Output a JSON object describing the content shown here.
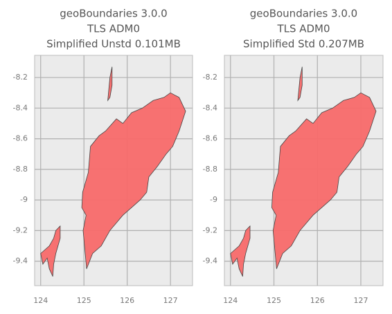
{
  "chart_data": [
    {
      "type": "map",
      "title": [
        "geoBoundaries 3.0.0",
        "TLS ADM0",
        "Simplified Unstd 0.101MB"
      ],
      "xlim": [
        123.86,
        127.51
      ],
      "ylim": [
        -9.56,
        -8.055
      ],
      "xticks": [
        124,
        125,
        126,
        127
      ],
      "yticks": [
        -8.2,
        -8.4,
        -8.6,
        -8.8,
        -9.0,
        -9.2,
        -9.4
      ],
      "grid": true,
      "color": "#f86a6a",
      "shapes": [
        {
          "x": [
            125.06,
            124.98,
            125.05,
            124.95,
            124.97,
            125.1,
            125.15,
            125.35,
            125.5,
            125.75,
            125.9,
            126.1,
            126.35,
            126.6,
            126.85,
            127.0,
            127.2,
            127.35,
            127.2,
            127.05,
            126.9,
            126.7,
            126.5,
            126.45,
            126.3,
            126.1,
            125.9,
            125.6,
            125.4,
            125.2,
            125.06
          ],
          "y": [
            -9.45,
            -9.2,
            -9.1,
            -9.05,
            -8.95,
            -8.82,
            -8.65,
            -8.58,
            -8.55,
            -8.47,
            -8.5,
            -8.43,
            -8.4,
            -8.35,
            -8.33,
            -8.3,
            -8.33,
            -8.42,
            -8.55,
            -8.65,
            -8.7,
            -8.78,
            -8.85,
            -8.95,
            -9.0,
            -9.05,
            -9.1,
            -9.2,
            -9.3,
            -9.35,
            -9.45
          ]
        },
        {
          "x": [
            124.0,
            124.2,
            124.3,
            124.35,
            124.45,
            124.45,
            124.35,
            124.3,
            124.28,
            124.2,
            124.15,
            124.05,
            124.0
          ],
          "y": [
            -9.35,
            -9.3,
            -9.25,
            -9.2,
            -9.17,
            -9.25,
            -9.35,
            -9.42,
            -9.5,
            -9.45,
            -9.38,
            -9.42,
            -9.35
          ]
        },
        {
          "x": [
            125.55,
            125.6,
            125.65,
            125.65,
            125.6,
            125.55
          ],
          "y": [
            -8.35,
            -8.2,
            -8.13,
            -8.25,
            -8.33,
            -8.35
          ]
        }
      ]
    },
    {
      "type": "map",
      "title": [
        "geoBoundaries 3.0.0",
        "TLS ADM0",
        "Simplified Std 0.207MB"
      ],
      "xlim": [
        123.86,
        127.51
      ],
      "ylim": [
        -9.56,
        -8.055
      ],
      "xticks": [
        124,
        125,
        126,
        127
      ],
      "yticks": [
        -8.2,
        -8.4,
        -8.6,
        -8.8,
        -9.0,
        -9.2,
        -9.4
      ],
      "grid": true,
      "color": "#f86a6a",
      "shapes": [
        {
          "x": [
            125.06,
            124.98,
            125.05,
            124.95,
            124.97,
            125.1,
            125.15,
            125.35,
            125.5,
            125.75,
            125.9,
            126.1,
            126.35,
            126.6,
            126.85,
            127.0,
            127.2,
            127.35,
            127.2,
            127.05,
            126.9,
            126.7,
            126.5,
            126.45,
            126.3,
            126.1,
            125.9,
            125.6,
            125.4,
            125.2,
            125.06
          ],
          "y": [
            -9.45,
            -9.2,
            -9.1,
            -9.05,
            -8.95,
            -8.82,
            -8.65,
            -8.58,
            -8.55,
            -8.47,
            -8.5,
            -8.43,
            -8.4,
            -8.35,
            -8.33,
            -8.3,
            -8.33,
            -8.42,
            -8.55,
            -8.65,
            -8.7,
            -8.78,
            -8.85,
            -8.95,
            -9.0,
            -9.05,
            -9.1,
            -9.2,
            -9.3,
            -9.35,
            -9.45
          ]
        },
        {
          "x": [
            124.0,
            124.2,
            124.3,
            124.35,
            124.45,
            124.45,
            124.35,
            124.3,
            124.28,
            124.2,
            124.15,
            124.05,
            124.0
          ],
          "y": [
            -9.35,
            -9.3,
            -9.25,
            -9.2,
            -9.17,
            -9.25,
            -9.35,
            -9.42,
            -9.5,
            -9.45,
            -9.38,
            -9.42,
            -9.35
          ]
        },
        {
          "x": [
            125.55,
            125.6,
            125.65,
            125.65,
            125.6,
            125.55
          ],
          "y": [
            -8.35,
            -8.2,
            -8.13,
            -8.25,
            -8.33,
            -8.35
          ]
        }
      ]
    }
  ]
}
